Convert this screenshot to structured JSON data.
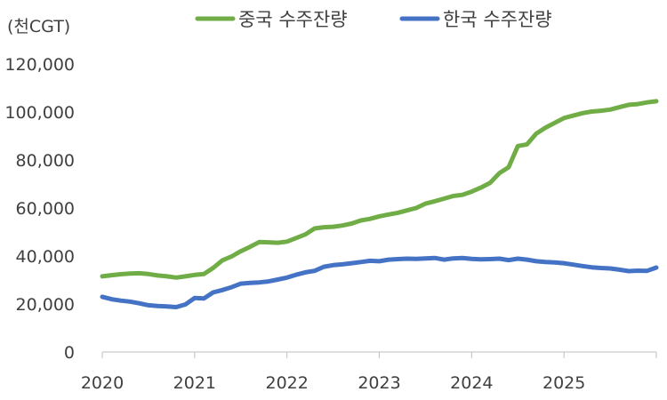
{
  "chart_data": {
    "type": "line",
    "unit_label": "(천CGT)",
    "x_ticks": [
      "2020",
      "2021",
      "2022",
      "2023",
      "2024",
      "2025"
    ],
    "y_ticks": [
      "0",
      "20,000",
      "40,000",
      "60,000",
      "80,000",
      "100,000",
      "120,000"
    ],
    "ylim": [
      0,
      120000
    ],
    "xlim": [
      2020.0,
      2026.0
    ],
    "legend_position": "top",
    "series": [
      {
        "name": "중국 수주잔량",
        "color": "#70ad47",
        "x": [
          2020.0,
          2020.1,
          2020.2,
          2020.3,
          2020.4,
          2020.5,
          2020.6,
          2020.7,
          2020.8,
          2020.9,
          2021.0,
          2021.1,
          2021.2,
          2021.3,
          2021.4,
          2021.5,
          2021.6,
          2021.7,
          2021.8,
          2021.9,
          2022.0,
          2022.1,
          2022.2,
          2022.3,
          2022.4,
          2022.5,
          2022.6,
          2022.7,
          2022.8,
          2022.9,
          2023.0,
          2023.1,
          2023.2,
          2023.3,
          2023.4,
          2023.5,
          2023.6,
          2023.7,
          2023.8,
          2023.9,
          2024.0,
          2024.1,
          2024.2,
          2024.3,
          2024.4,
          2024.5,
          2024.6,
          2024.7,
          2024.8,
          2024.9,
          2025.0,
          2025.1,
          2025.2,
          2025.3,
          2025.4,
          2025.5,
          2025.6,
          2025.7,
          2025.8,
          2025.9,
          2026.0
        ],
        "values": [
          31500,
          32000,
          32400,
          32700,
          32800,
          32500,
          31900,
          31500,
          31000,
          31500,
          32100,
          32500,
          35000,
          38200,
          39800,
          42000,
          43800,
          45800,
          45700,
          45500,
          46000,
          47500,
          49000,
          51500,
          52000,
          52200,
          52700,
          53500,
          54800,
          55500,
          56500,
          57300,
          58000,
          59000,
          60000,
          61800,
          62800,
          63900,
          65000,
          65500,
          66800,
          68500,
          70500,
          74500,
          77000,
          85800,
          86500,
          91000,
          93500,
          95500,
          97500,
          98500,
          99500,
          100200,
          100500,
          101000,
          102000,
          103000,
          103300,
          104000,
          104500
        ]
      },
      {
        "name": "한국 수주잔량",
        "color": "#4472c4",
        "x": [
          2020.0,
          2020.1,
          2020.2,
          2020.3,
          2020.4,
          2020.5,
          2020.6,
          2020.7,
          2020.8,
          2020.9,
          2021.0,
          2021.1,
          2021.2,
          2021.3,
          2021.4,
          2021.5,
          2021.6,
          2021.7,
          2021.8,
          2021.9,
          2022.0,
          2022.1,
          2022.2,
          2022.3,
          2022.4,
          2022.5,
          2022.6,
          2022.7,
          2022.8,
          2022.9,
          2023.0,
          2023.1,
          2023.2,
          2023.3,
          2023.4,
          2023.5,
          2023.6,
          2023.7,
          2023.8,
          2023.9,
          2024.0,
          2024.1,
          2024.2,
          2024.3,
          2024.4,
          2024.5,
          2024.6,
          2024.7,
          2024.8,
          2024.9,
          2025.0,
          2025.1,
          2025.2,
          2025.3,
          2025.4,
          2025.5,
          2025.6,
          2025.7,
          2025.8,
          2025.9,
          2026.0
        ],
        "values": [
          23000,
          22000,
          21400,
          21000,
          20300,
          19500,
          19200,
          19000,
          18700,
          19800,
          22500,
          22300,
          24800,
          25800,
          27000,
          28500,
          28800,
          29000,
          29400,
          30200,
          31000,
          32200,
          33200,
          33800,
          35500,
          36200,
          36500,
          37000,
          37500,
          38000,
          37800,
          38500,
          38700,
          38900,
          38800,
          39000,
          39200,
          38500,
          39000,
          39200,
          38800,
          38600,
          38700,
          38900,
          38300,
          38900,
          38500,
          37800,
          37500,
          37300,
          37000,
          36400,
          35800,
          35300,
          35000,
          34800,
          34300,
          33700,
          33900,
          33800,
          35200
        ]
      }
    ]
  }
}
